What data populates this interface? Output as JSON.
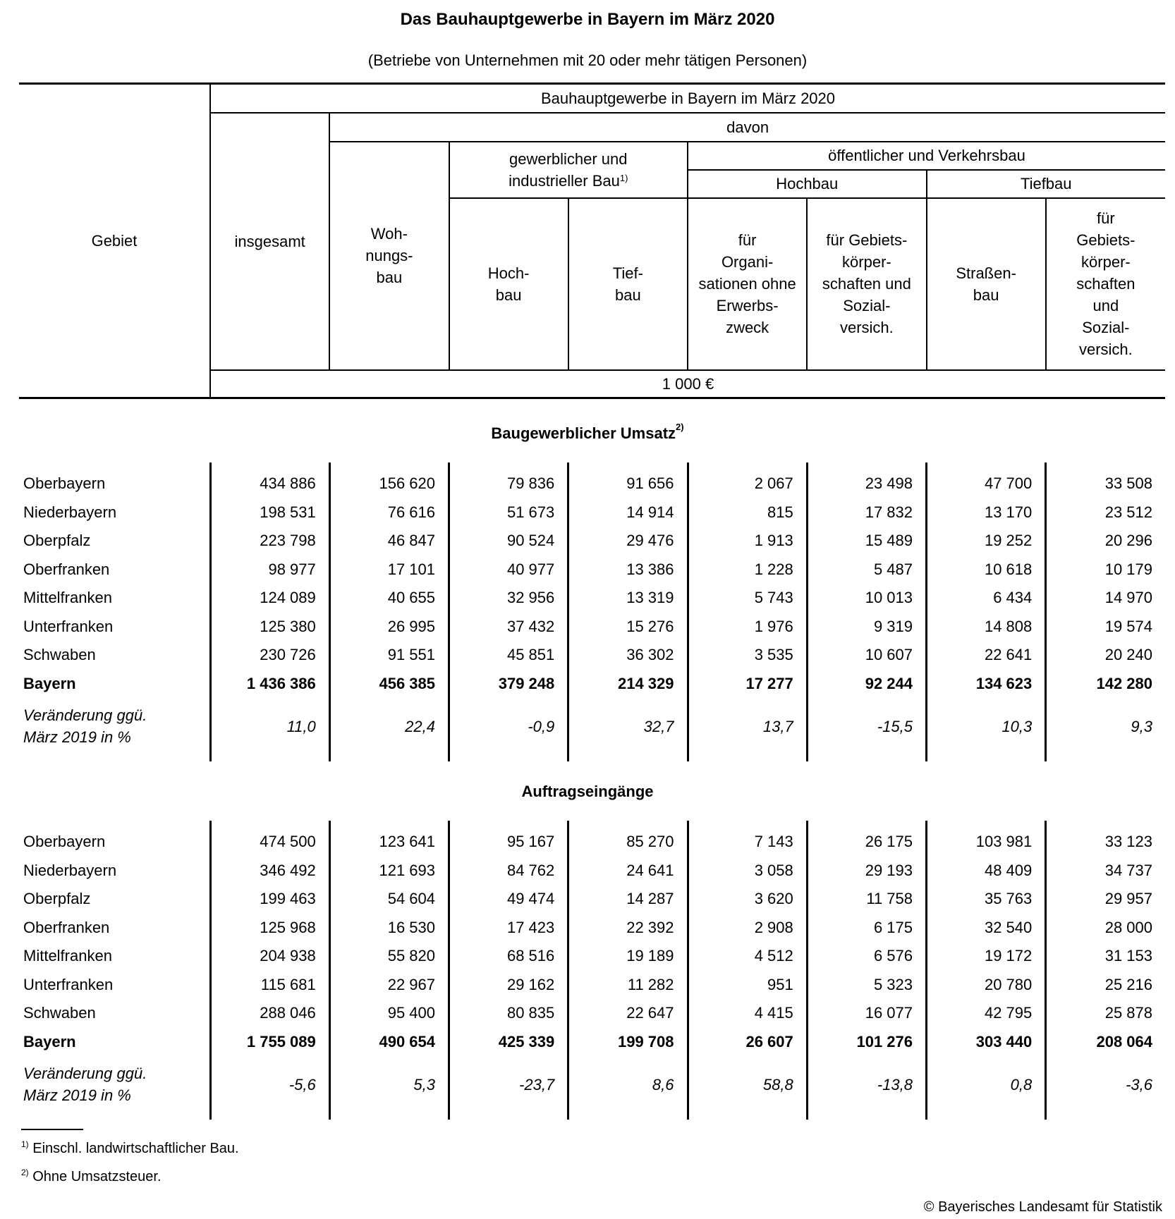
{
  "title": "Das Bauhauptgewerbe in Bayern im März 2020",
  "subtitle": "(Betriebe von Unternehmen mit 20 oder mehr tätigen Personen)",
  "header": {
    "gebiet": "Gebiet",
    "top": "Bauhauptgewerbe in Bayern im März 2020",
    "insgesamt": "insgesamt",
    "davon": "davon",
    "wohnungsbau": "Woh-\nnungs-\nbau",
    "gewerblich": "gewerblicher und\nindustrieller Bau",
    "gewerblich_fn": "1)",
    "oeffentlich": "öffentlicher und Verkehrsbau",
    "hochbau": "Hochbau",
    "tiefbau": "Tiefbau",
    "g_hochbau": "Hoch-\nbau",
    "g_tiefbau": "Tief-\nbau",
    "org": "für\nOrgani-\nsationen ohne\nErwerbs-\nzweck",
    "gebiets1": "für Gebiets-\nkörper-\nschaften und\nSozial-\nversich.",
    "strassen": "Straßen-\nbau",
    "gebiets2": "für\nGebiets-\nkörper-\nschaften\nund\nSozial-\nversich.",
    "unit": "1 000 €"
  },
  "sections": [
    {
      "title": "Baugewerblicher Umsatz",
      "title_fn": "2)",
      "rows": [
        {
          "label": "Oberbayern",
          "values": [
            "434 886",
            "156 620",
            "79 836",
            "91 656",
            "2 067",
            "23 498",
            "47 700",
            "33 508"
          ]
        },
        {
          "label": "Niederbayern",
          "values": [
            "198 531",
            "76 616",
            "51 673",
            "14 914",
            "815",
            "17 832",
            "13 170",
            "23 512"
          ]
        },
        {
          "label": "Oberpfalz",
          "values": [
            "223 798",
            "46 847",
            "90 524",
            "29 476",
            "1 913",
            "15 489",
            "19 252",
            "20 296"
          ]
        },
        {
          "label": "Oberfranken",
          "values": [
            "98 977",
            "17 101",
            "40 977",
            "13 386",
            "1 228",
            "5 487",
            "10 618",
            "10 179"
          ]
        },
        {
          "label": "Mittelfranken",
          "values": [
            "124 089",
            "40 655",
            "32 956",
            "13 319",
            "5 743",
            "10 013",
            "6 434",
            "14 970"
          ]
        },
        {
          "label": "Unterfranken",
          "values": [
            "125 380",
            "26 995",
            "37 432",
            "15 276",
            "1 976",
            "9 319",
            "14 808",
            "19 574"
          ]
        },
        {
          "label": "Schwaben",
          "values": [
            "230 726",
            "91 551",
            "45 851",
            "36 302",
            "3 535",
            "10 607",
            "22 641",
            "20 240"
          ]
        },
        {
          "label": "Bayern",
          "bold": true,
          "values": [
            "1 436 386",
            "456 385",
            "379 248",
            "214 329",
            "17 277",
            "92 244",
            "134 623",
            "142 280"
          ]
        },
        {
          "label": "Veränderung ggü.\nMärz 2019 in %",
          "change": true,
          "values": [
            "11,0",
            "22,4",
            "-0,9",
            "32,7",
            "13,7",
            "-15,5",
            "10,3",
            "9,3"
          ]
        }
      ]
    },
    {
      "title": "Auftragseingänge",
      "title_fn": "",
      "rows": [
        {
          "label": "Oberbayern",
          "values": [
            "474 500",
            "123 641",
            "95 167",
            "85 270",
            "7 143",
            "26 175",
            "103 981",
            "33 123"
          ]
        },
        {
          "label": "Niederbayern",
          "values": [
            "346 492",
            "121 693",
            "84 762",
            "24 641",
            "3 058",
            "29 193",
            "48 409",
            "34 737"
          ]
        },
        {
          "label": "Oberpfalz",
          "values": [
            "199 463",
            "54 604",
            "49 474",
            "14 287",
            "3 620",
            "11 758",
            "35 763",
            "29 957"
          ]
        },
        {
          "label": "Oberfranken",
          "values": [
            "125 968",
            "16 530",
            "17 423",
            "22 392",
            "2 908",
            "6 175",
            "32 540",
            "28 000"
          ]
        },
        {
          "label": "Mittelfranken",
          "values": [
            "204 938",
            "55 820",
            "68 516",
            "19 189",
            "4 512",
            "6 576",
            "19 172",
            "31 153"
          ]
        },
        {
          "label": "Unterfranken",
          "values": [
            "115 681",
            "22 967",
            "29 162",
            "11 282",
            "951",
            "5 323",
            "20 780",
            "25 216"
          ]
        },
        {
          "label": "Schwaben",
          "values": [
            "288 046",
            "95 400",
            "80 835",
            "22 647",
            "4 415",
            "16 077",
            "42 795",
            "25 878"
          ]
        },
        {
          "label": "Bayern",
          "bold": true,
          "values": [
            "1 755 089",
            "490 654",
            "425 339",
            "199 708",
            "26 607",
            "101 276",
            "303 440",
            "208 064"
          ]
        },
        {
          "label": "Veränderung ggü.\nMärz 2019 in %",
          "change": true,
          "values": [
            "-5,6",
            "5,3",
            "-23,7",
            "8,6",
            "58,8",
            "-13,8",
            "0,8",
            "-3,6"
          ]
        }
      ]
    }
  ],
  "footnotes": [
    {
      "mark": "1)",
      "text": "Einschl. landwirtschaftlicher Bau."
    },
    {
      "mark": "2)",
      "text": "Ohne Umsatzsteuer."
    }
  ],
  "copyright": "© Bayerisches Landesamt für Statistik"
}
